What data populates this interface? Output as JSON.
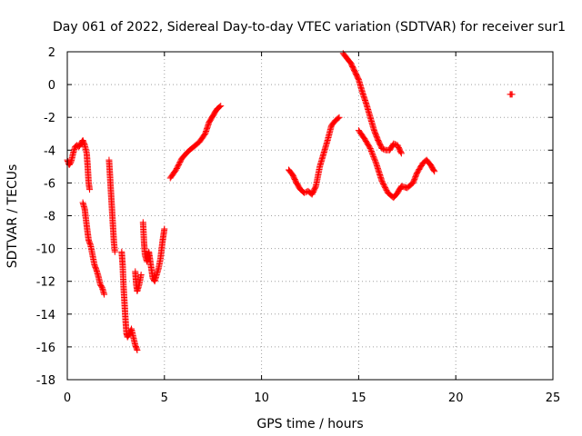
{
  "chart_data": {
    "type": "scatter",
    "title": "Day 061 of 2022, Sidereal Day-to-day VTEC variation (SDTVAR) for receiver sur1",
    "xlabel": "GPS time / hours",
    "ylabel": "SDTVAR / TECUs",
    "xlim": [
      0,
      25
    ],
    "ylim": [
      -18,
      2
    ],
    "xticks": [
      0,
      5,
      10,
      15,
      20,
      25
    ],
    "yticks": [
      -18,
      -16,
      -14,
      -12,
      -10,
      -8,
      -6,
      -4,
      -2,
      0,
      2
    ],
    "grid": true,
    "marker": "+",
    "color": "#ff0000",
    "segments": [
      [
        [
          0.0,
          -4.6
        ],
        [
          0.1,
          -4.9
        ],
        [
          0.2,
          -4.7
        ],
        [
          0.3,
          -4.2
        ],
        [
          0.4,
          -3.8
        ],
        [
          0.5,
          -3.7
        ],
        [
          0.6,
          -3.8
        ],
        [
          0.7,
          -3.6
        ],
        [
          0.8,
          -3.4
        ],
        [
          0.9,
          -3.7
        ],
        [
          1.0,
          -4.2
        ],
        [
          1.05,
          -5.0
        ],
        [
          1.1,
          -6.0
        ],
        [
          1.15,
          -6.4
        ]
      ],
      [
        [
          0.8,
          -7.2
        ],
        [
          0.9,
          -7.6
        ],
        [
          1.0,
          -8.6
        ],
        [
          1.1,
          -9.5
        ],
        [
          1.2,
          -9.8
        ],
        [
          1.3,
          -10.4
        ],
        [
          1.4,
          -11.0
        ],
        [
          1.5,
          -11.3
        ],
        [
          1.6,
          -11.7
        ],
        [
          1.7,
          -12.2
        ],
        [
          1.8,
          -12.4
        ],
        [
          1.9,
          -12.8
        ]
      ],
      [
        [
          2.15,
          -4.6
        ],
        [
          2.2,
          -5.6
        ],
        [
          2.25,
          -6.6
        ],
        [
          2.3,
          -7.6
        ],
        [
          2.35,
          -8.6
        ],
        [
          2.4,
          -9.6
        ],
        [
          2.45,
          -10.2
        ]
      ],
      [
        [
          2.8,
          -10.2
        ],
        [
          2.85,
          -11.0
        ],
        [
          2.9,
          -12.4
        ],
        [
          2.95,
          -13.4
        ],
        [
          3.0,
          -14.4
        ],
        [
          3.05,
          -15.2
        ],
        [
          3.1,
          -15.4
        ],
        [
          3.2,
          -15.2
        ],
        [
          3.3,
          -14.9
        ],
        [
          3.4,
          -15.4
        ],
        [
          3.5,
          -15.9
        ],
        [
          3.6,
          -16.2
        ]
      ],
      [
        [
          3.5,
          -11.4
        ],
        [
          3.55,
          -12.2
        ],
        [
          3.6,
          -12.6
        ],
        [
          3.7,
          -12.2
        ],
        [
          3.8,
          -11.6
        ]
      ],
      [
        [
          3.9,
          -8.4
        ],
        [
          3.95,
          -9.6
        ],
        [
          4.0,
          -10.4
        ],
        [
          4.1,
          -10.8
        ],
        [
          4.2,
          -10.2
        ],
        [
          4.3,
          -11.0
        ],
        [
          4.4,
          -11.8
        ],
        [
          4.5,
          -12.0
        ],
        [
          4.6,
          -11.6
        ],
        [
          4.7,
          -11.2
        ],
        [
          4.8,
          -10.6
        ],
        [
          4.9,
          -9.6
        ],
        [
          5.0,
          -8.8
        ]
      ],
      [
        [
          5.3,
          -5.7
        ],
        [
          5.6,
          -5.2
        ],
        [
          5.9,
          -4.5
        ],
        [
          6.2,
          -4.1
        ],
        [
          6.5,
          -3.8
        ],
        [
          6.8,
          -3.5
        ],
        [
          7.1,
          -3.0
        ],
        [
          7.3,
          -2.3
        ],
        [
          7.5,
          -1.9
        ],
        [
          7.7,
          -1.5
        ],
        [
          7.9,
          -1.3
        ]
      ],
      [
        [
          11.4,
          -5.2
        ],
        [
          11.6,
          -5.5
        ],
        [
          11.8,
          -6.0
        ],
        [
          12.0,
          -6.4
        ],
        [
          12.2,
          -6.6
        ],
        [
          12.4,
          -6.5
        ],
        [
          12.6,
          -6.7
        ],
        [
          12.8,
          -6.2
        ],
        [
          13.0,
          -5.0
        ],
        [
          13.2,
          -4.2
        ],
        [
          13.4,
          -3.4
        ],
        [
          13.6,
          -2.5
        ],
        [
          13.8,
          -2.2
        ],
        [
          14.0,
          -2.0
        ]
      ],
      [
        [
          14.2,
          1.9
        ],
        [
          14.4,
          1.6
        ],
        [
          14.6,
          1.3
        ],
        [
          14.8,
          0.8
        ],
        [
          15.0,
          0.3
        ],
        [
          15.2,
          -0.5
        ],
        [
          15.4,
          -1.2
        ],
        [
          15.6,
          -2.0
        ],
        [
          15.8,
          -2.8
        ],
        [
          16.0,
          -3.4
        ],
        [
          16.2,
          -3.9
        ],
        [
          16.4,
          -4.0
        ],
        [
          16.6,
          -4.0
        ],
        [
          16.8,
          -3.6
        ],
        [
          17.0,
          -3.7
        ],
        [
          17.2,
          -4.2
        ]
      ],
      [
        [
          15.0,
          -2.8
        ],
        [
          15.3,
          -3.3
        ],
        [
          15.6,
          -3.9
        ],
        [
          15.9,
          -4.8
        ],
        [
          16.2,
          -5.9
        ],
        [
          16.5,
          -6.6
        ],
        [
          16.8,
          -6.9
        ],
        [
          17.0,
          -6.6
        ],
        [
          17.2,
          -6.2
        ],
        [
          17.5,
          -6.3
        ],
        [
          17.8,
          -6.0
        ],
        [
          18.0,
          -5.4
        ],
        [
          18.3,
          -4.8
        ],
        [
          18.5,
          -4.6
        ],
        [
          18.7,
          -4.9
        ],
        [
          18.9,
          -5.3
        ]
      ],
      [
        [
          22.8,
          -0.6
        ],
        [
          22.9,
          -0.6
        ]
      ]
    ]
  }
}
